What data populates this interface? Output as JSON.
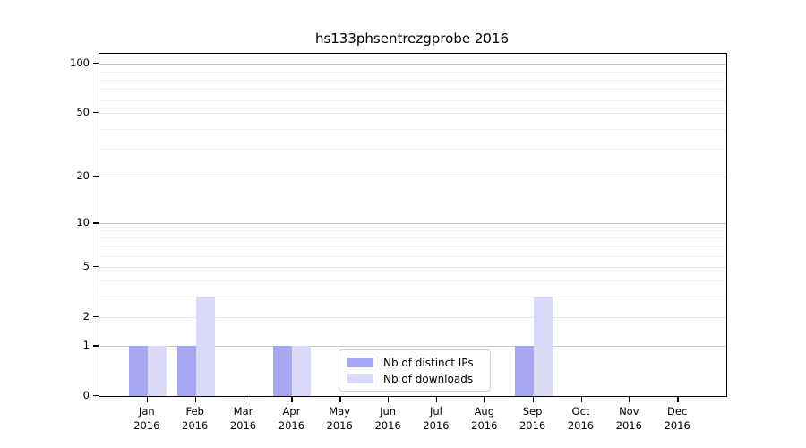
{
  "chart_data": {
    "type": "bar",
    "title": "hs133phsentrezgprobe 2016",
    "xlabel": "",
    "ylabel": "",
    "yscale": "log1p",
    "y_max": 115,
    "ylim": [
      0,
      115
    ],
    "grid": "horizontal",
    "categories": [
      "Jan",
      "Feb",
      "Mar",
      "Apr",
      "May",
      "Jun",
      "Jul",
      "Aug",
      "Sep",
      "Oct",
      "Nov",
      "Dec"
    ],
    "x_tick_year": "2016",
    "series": [
      {
        "name": "Nb of distinct IPs",
        "color": "#a6a6f2",
        "values": [
          1,
          1,
          0,
          1,
          0,
          0,
          0,
          0,
          1,
          0,
          0,
          0
        ]
      },
      {
        "name": "Nb of downloads",
        "color": "#dadaf8",
        "values": [
          1,
          3,
          0,
          1,
          0,
          0,
          0,
          0,
          3,
          0,
          0,
          0
        ]
      }
    ],
    "y_ticks": [
      100,
      50,
      20,
      10,
      5,
      2,
      1,
      0
    ],
    "gridlines": [
      {
        "level": "strong",
        "color": "#c6c6c6",
        "values": [
          1,
          10,
          100
        ]
      },
      {
        "level": "medium",
        "color": "#e4e4e4",
        "values": [
          2,
          5,
          20,
          50
        ]
      },
      {
        "level": "minor",
        "color": "#f1f1f1",
        "values": [
          3,
          4,
          6,
          7,
          8,
          9,
          30,
          40,
          60,
          70,
          80,
          90
        ]
      }
    ],
    "legend": {
      "position": "lower-center",
      "items": [
        "Nb of distinct IPs",
        "Nb of downloads"
      ]
    }
  }
}
